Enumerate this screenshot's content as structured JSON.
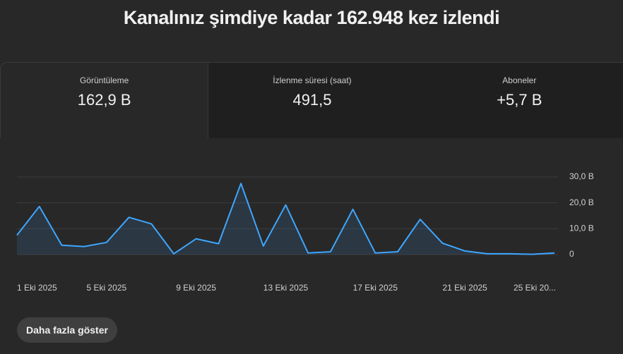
{
  "header": {
    "title": "Kanalınız şimdiye kadar 162.948 kez izlendi"
  },
  "metrics": [
    {
      "label": "Görüntüleme",
      "value": "162,9 B"
    },
    {
      "label": "İzlenme süresi (saat)",
      "value": "491,5"
    },
    {
      "label": "Aboneler",
      "value": "+5,7 B"
    }
  ],
  "chart_data": {
    "type": "line",
    "categories": [
      "1 Eki 2025",
      null,
      null,
      null,
      "5 Eki 2025",
      null,
      null,
      null,
      "9 Eki 2025",
      null,
      null,
      null,
      "13 Eki 2025",
      null,
      null,
      null,
      "17 Eki 2025",
      null,
      null,
      null,
      "21 Eki 2025",
      null,
      null,
      null,
      "25 Eki 20..."
    ],
    "series": [
      {
        "color": "#3ea6ff",
        "values": [
          7.5,
          18.6,
          3.6,
          3.1,
          4.7,
          14.4,
          11.9,
          0.3,
          6.1,
          4.2,
          27.5,
          3.3,
          19.2,
          0.6,
          1.1,
          17.5,
          0.6,
          1.1,
          13.6,
          4.4,
          1.4,
          0.3,
          0.3,
          0.1,
          0.6
        ]
      }
    ],
    "ylim": [
      0,
      30
    ],
    "yticks": [
      0,
      {
        "value": 10,
        "label": "10,0 B"
      },
      {
        "value": 20,
        "label": "20,0 B"
      },
      {
        "value": 30,
        "label": "30,0 B"
      }
    ],
    "grid": true
  },
  "button": {
    "label": "Daha fazla göster"
  }
}
